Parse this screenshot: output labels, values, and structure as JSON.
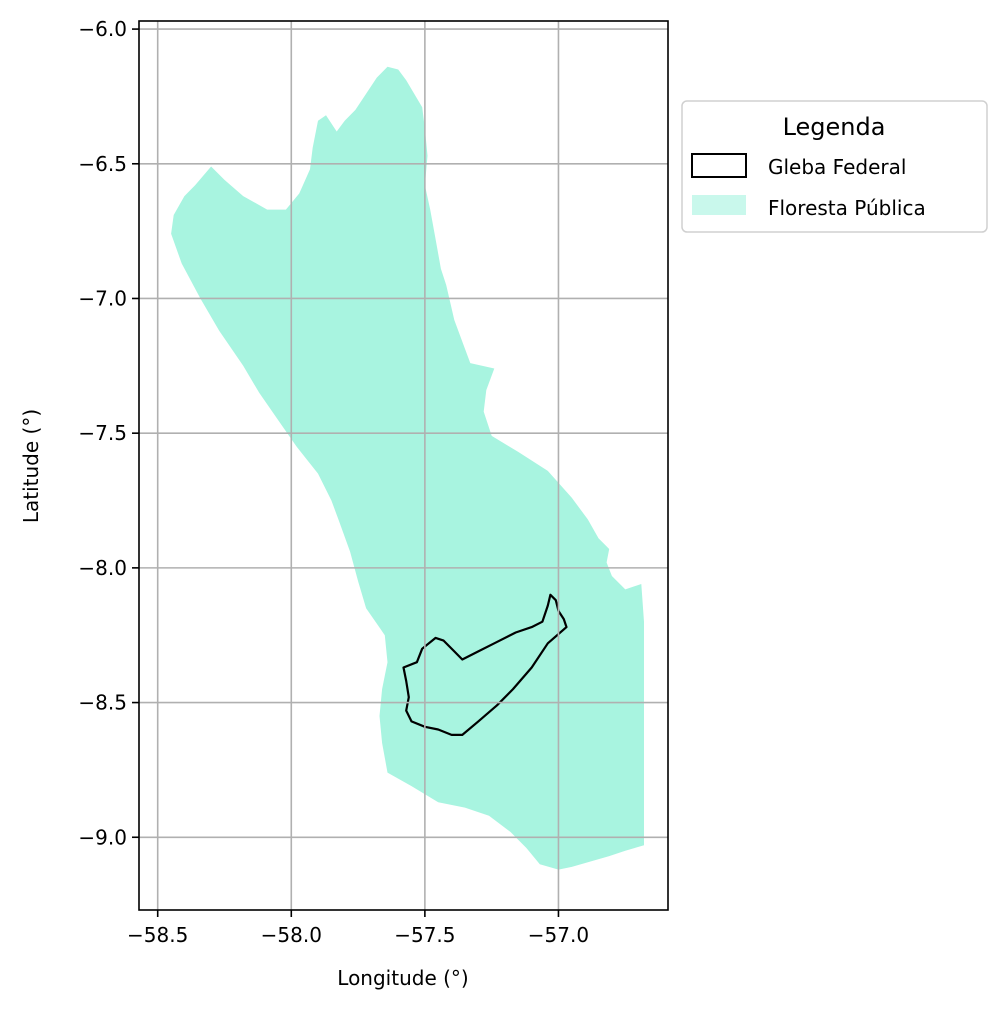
{
  "chart_data": {
    "type": "map",
    "xlabel": "Longitude (°)",
    "ylabel": "Latitude (°)",
    "xlim": [
      -58.57,
      -56.59
    ],
    "ylim": [
      -9.27,
      -5.97
    ],
    "grid": true,
    "x_ticks": [
      {
        "value": -58.5,
        "label": "−58.5"
      },
      {
        "value": -58.0,
        "label": "−58.0"
      },
      {
        "value": -57.5,
        "label": "−57.5"
      },
      {
        "value": -57.0,
        "label": "−57.0"
      }
    ],
    "y_ticks": [
      {
        "value": -6.0,
        "label": "−6.0"
      },
      {
        "value": -6.5,
        "label": "−6.5"
      },
      {
        "value": -7.0,
        "label": "−7.0"
      },
      {
        "value": -7.5,
        "label": "−7.5"
      },
      {
        "value": -8.0,
        "label": "−8.0"
      },
      {
        "value": -8.5,
        "label": "−8.5"
      },
      {
        "value": -9.0,
        "label": "−9.0"
      }
    ],
    "legend": {
      "title": "Legenda",
      "placement": "outside-right-top",
      "entries": [
        {
          "label": "Gleba Federal",
          "fill": "none",
          "edge": "#000000"
        },
        {
          "label": "Floresta Pública",
          "fill": "#a8f4e0",
          "edge": "none"
        }
      ]
    },
    "layers": [
      {
        "name": "Floresta Pública",
        "fill": "#a8f4e0",
        "polygon": [
          [
            -57.64,
            -6.14
          ],
          [
            -57.6,
            -6.15
          ],
          [
            -57.57,
            -6.19
          ],
          [
            -57.54,
            -6.24
          ],
          [
            -57.51,
            -6.29
          ],
          [
            -57.5,
            -6.37
          ],
          [
            -57.49,
            -6.47
          ],
          [
            -57.5,
            -6.58
          ],
          [
            -57.48,
            -6.67
          ],
          [
            -57.46,
            -6.78
          ],
          [
            -57.44,
            -6.89
          ],
          [
            -57.42,
            -6.95
          ],
          [
            -57.39,
            -7.08
          ],
          [
            -57.36,
            -7.16
          ],
          [
            -57.33,
            -7.24
          ],
          [
            -57.24,
            -7.26
          ],
          [
            -57.27,
            -7.34
          ],
          [
            -57.28,
            -7.42
          ],
          [
            -57.25,
            -7.51
          ],
          [
            -57.15,
            -7.57
          ],
          [
            -57.04,
            -7.64
          ],
          [
            -56.95,
            -7.74
          ],
          [
            -56.89,
            -7.82
          ],
          [
            -56.85,
            -7.89
          ],
          [
            -56.81,
            -7.93
          ],
          [
            -56.82,
            -7.98
          ],
          [
            -56.8,
            -8.03
          ],
          [
            -56.75,
            -8.08
          ],
          [
            -56.69,
            -8.06
          ],
          [
            -56.68,
            -8.2
          ],
          [
            -56.68,
            -8.6
          ],
          [
            -56.68,
            -9.03
          ],
          [
            -56.75,
            -9.05
          ],
          [
            -56.81,
            -9.07
          ],
          [
            -56.88,
            -9.09
          ],
          [
            -56.95,
            -9.11
          ],
          [
            -57.0,
            -9.12
          ],
          [
            -57.07,
            -9.1
          ],
          [
            -57.12,
            -9.04
          ],
          [
            -57.18,
            -8.98
          ],
          [
            -57.26,
            -8.92
          ],
          [
            -57.35,
            -8.89
          ],
          [
            -57.45,
            -8.87
          ],
          [
            -57.55,
            -8.81
          ],
          [
            -57.64,
            -8.76
          ],
          [
            -57.66,
            -8.65
          ],
          [
            -57.67,
            -8.55
          ],
          [
            -57.66,
            -8.45
          ],
          [
            -57.64,
            -8.35
          ],
          [
            -57.65,
            -8.25
          ],
          [
            -57.72,
            -8.15
          ],
          [
            -57.75,
            -8.05
          ],
          [
            -57.78,
            -7.94
          ],
          [
            -57.82,
            -7.83
          ],
          [
            -57.85,
            -7.75
          ],
          [
            -57.9,
            -7.65
          ],
          [
            -57.98,
            -7.55
          ],
          [
            -58.05,
            -7.45
          ],
          [
            -58.12,
            -7.35
          ],
          [
            -58.18,
            -7.25
          ],
          [
            -58.27,
            -7.12
          ],
          [
            -58.34,
            -7.0
          ],
          [
            -58.41,
            -6.87
          ],
          [
            -58.45,
            -6.76
          ],
          [
            -58.44,
            -6.69
          ],
          [
            -58.4,
            -6.62
          ],
          [
            -58.36,
            -6.58
          ],
          [
            -58.3,
            -6.51
          ],
          [
            -58.25,
            -6.56
          ],
          [
            -58.18,
            -6.62
          ],
          [
            -58.09,
            -6.67
          ],
          [
            -58.02,
            -6.67
          ],
          [
            -57.97,
            -6.61
          ],
          [
            -57.93,
            -6.52
          ],
          [
            -57.92,
            -6.44
          ],
          [
            -57.9,
            -6.34
          ],
          [
            -57.87,
            -6.32
          ],
          [
            -57.83,
            -6.38
          ],
          [
            -57.8,
            -6.34
          ],
          [
            -57.76,
            -6.3
          ],
          [
            -57.72,
            -6.24
          ],
          [
            -57.68,
            -6.18
          ]
        ]
      },
      {
        "name": "Gleba Federal",
        "edge": "#000000",
        "polygon": [
          [
            -57.03,
            -8.1
          ],
          [
            -57.01,
            -8.12
          ],
          [
            -57.0,
            -8.16
          ],
          [
            -56.98,
            -8.19
          ],
          [
            -56.97,
            -8.22
          ],
          [
            -57.04,
            -8.28
          ],
          [
            -57.1,
            -8.37
          ],
          [
            -57.17,
            -8.45
          ],
          [
            -57.23,
            -8.51
          ],
          [
            -57.3,
            -8.57
          ],
          [
            -57.36,
            -8.62
          ],
          [
            -57.4,
            -8.62
          ],
          [
            -57.45,
            -8.6
          ],
          [
            -57.5,
            -8.59
          ],
          [
            -57.55,
            -8.57
          ],
          [
            -57.57,
            -8.53
          ],
          [
            -57.56,
            -8.48
          ],
          [
            -57.57,
            -8.42
          ],
          [
            -57.58,
            -8.37
          ],
          [
            -57.53,
            -8.35
          ],
          [
            -57.51,
            -8.3
          ],
          [
            -57.46,
            -8.26
          ],
          [
            -57.43,
            -8.27
          ],
          [
            -57.39,
            -8.31
          ],
          [
            -57.36,
            -8.34
          ],
          [
            -57.3,
            -8.31
          ],
          [
            -57.24,
            -8.28
          ],
          [
            -57.16,
            -8.24
          ],
          [
            -57.1,
            -8.22
          ],
          [
            -57.06,
            -8.2
          ],
          [
            -57.04,
            -8.14
          ]
        ]
      }
    ]
  }
}
